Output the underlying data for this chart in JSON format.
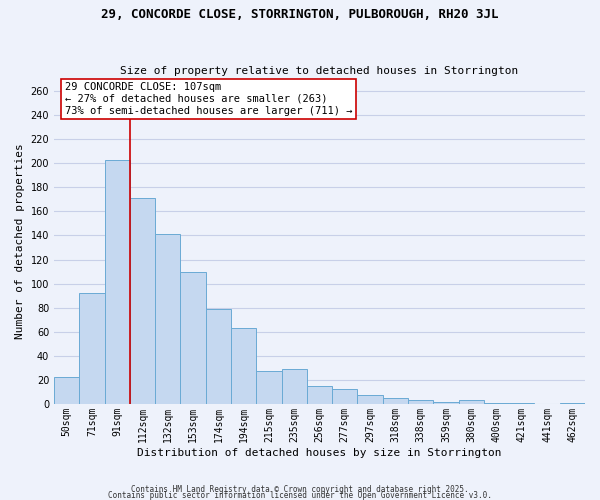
{
  "title": "29, CONCORDE CLOSE, STORRINGTON, PULBOROUGH, RH20 3JL",
  "subtitle": "Size of property relative to detached houses in Storrington",
  "xlabel": "Distribution of detached houses by size in Storrington",
  "ylabel": "Number of detached properties",
  "bar_labels": [
    "50sqm",
    "71sqm",
    "91sqm",
    "112sqm",
    "132sqm",
    "153sqm",
    "174sqm",
    "194sqm",
    "215sqm",
    "235sqm",
    "256sqm",
    "277sqm",
    "297sqm",
    "318sqm",
    "338sqm",
    "359sqm",
    "380sqm",
    "400sqm",
    "421sqm",
    "441sqm",
    "462sqm"
  ],
  "bar_values": [
    22,
    92,
    203,
    171,
    141,
    110,
    79,
    63,
    27,
    29,
    15,
    12,
    7,
    5,
    3,
    2,
    3,
    1,
    1,
    0,
    1
  ],
  "bar_color": "#c5d8f0",
  "bar_edge_color": "#6aaad4",
  "ylim": [
    0,
    270
  ],
  "yticks": [
    0,
    20,
    40,
    60,
    80,
    100,
    120,
    140,
    160,
    180,
    200,
    220,
    240,
    260
  ],
  "annotation_line1": "29 CONCORDE CLOSE: 107sqm",
  "annotation_line2": "← 27% of detached houses are smaller (263)",
  "annotation_line3": "73% of semi-detached houses are larger (711) →",
  "annotation_box_color": "#ffffff",
  "annotation_box_edge": "#cc0000",
  "vline_color": "#cc0000",
  "vline_x": 2.5,
  "footer1": "Contains HM Land Registry data © Crown copyright and database right 2025.",
  "footer2": "Contains public sector information licensed under the Open Government Licence v3.0.",
  "background_color": "#eef2fb",
  "grid_color": "#c8d0e8",
  "title_fontsize": 9,
  "subtitle_fontsize": 8,
  "axis_label_fontsize": 8,
  "tick_fontsize": 7,
  "annotation_fontsize": 7.5,
  "footer_fontsize": 5.5
}
